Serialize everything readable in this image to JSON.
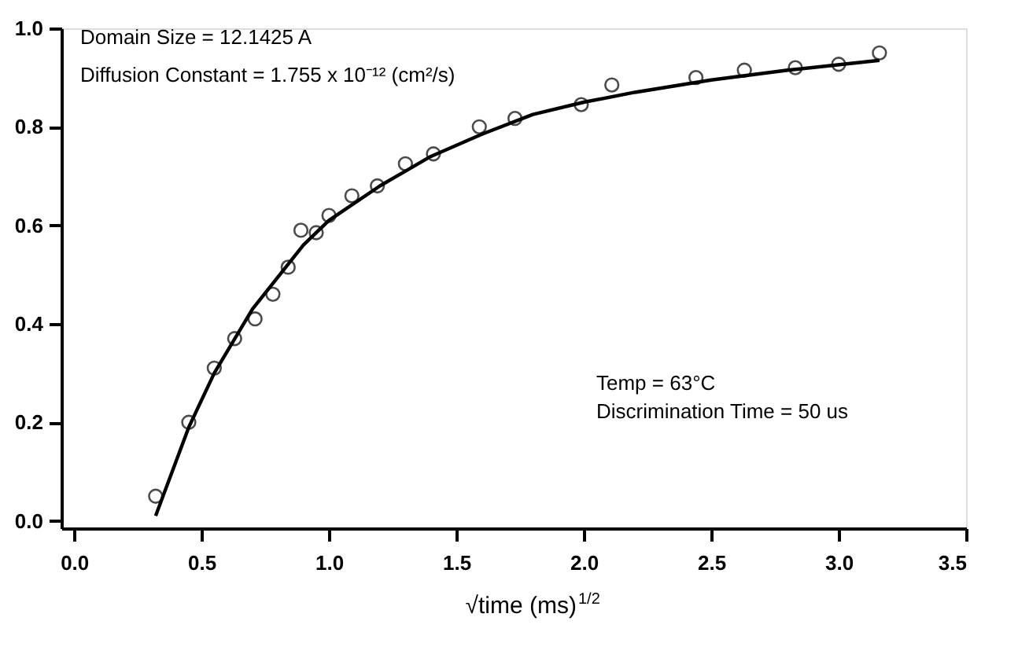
{
  "chart_data": {
    "type": "scatter",
    "xlabel": "√time    (ms)$^{1/2}$",
    "annotations": [
      "Domain Size = 12.1425 A",
      "Diffusion Constant = 1.755 x 10⁻¹² (cm²/s)",
      "Temp = 63°C",
      "Discrimination Time = 50 us"
    ],
    "series": [
      {
        "type": "scatter",
        "color": "#000000",
        "marker": "circle",
        "x": [
          0.32,
          0.45,
          0.55,
          0.63,
          0.71,
          0.78,
          0.84,
          0.89,
          0.95,
          1.0,
          1.09,
          1.19,
          1.3,
          1.41,
          1.59,
          1.73,
          1.99,
          2.11,
          2.44,
          2.63,
          2.83,
          3.0,
          3.16
        ],
        "values": [
          0.05,
          0.2,
          0.31,
          0.37,
          0.41,
          0.46,
          0.515,
          0.59,
          0.585,
          0.62,
          0.66,
          0.68,
          0.725,
          0.745,
          0.8,
          0.817,
          0.845,
          0.885,
          0.9,
          0.915,
          0.92,
          0.927,
          0.95
        ]
      },
      {
        "type": "line",
        "color": "#000000",
        "line_style": "solid",
        "x": [
          0.32,
          0.45,
          0.55,
          0.7,
          0.9,
          1.0,
          1.2,
          1.4,
          1.6,
          1.8,
          2.0,
          2.2,
          2.5,
          2.8,
          3.16
        ],
        "values": [
          0.01,
          0.19,
          0.3,
          0.43,
          0.56,
          0.61,
          0.68,
          0.74,
          0.785,
          0.825,
          0.85,
          0.87,
          0.895,
          0.915,
          0.935
        ]
      }
    ],
    "xlim": [
      -0.05,
      3.5
    ],
    "ylim": [
      -0.015,
      1.0
    ],
    "xticks": [
      {
        "value": 0,
        "label": "0.0"
      },
      0.5,
      {
        "value": 1,
        "label": "1.0"
      },
      1.5,
      {
        "value": 2,
        "label": "2.0"
      },
      2.5,
      {
        "value": 3,
        "label": "3.0"
      },
      3.5
    ],
    "yticks": [
      {
        "value": 0,
        "label": "0.0"
      },
      0.2,
      0.4,
      0.6,
      0.8,
      {
        "value": 1,
        "label": "1.0"
      }
    ],
    "grid": false
  }
}
